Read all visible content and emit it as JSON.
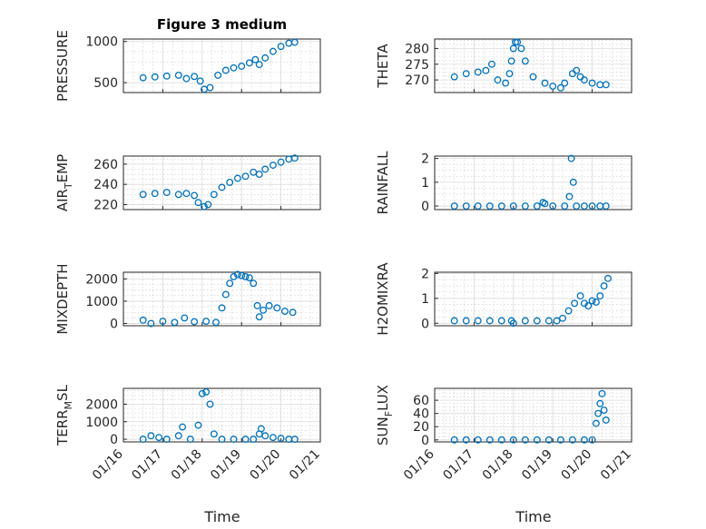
{
  "chart_data": [
    {
      "type": "scatter",
      "title": "Figure 3 medium",
      "ylabel": "PRESSURE",
      "yticks": [
        500,
        1000
      ],
      "ylim": [
        380,
        1030
      ],
      "xlim": [
        "01/16",
        "01/21"
      ],
      "xticks": [
        "01/16",
        "01/17",
        "01/18",
        "01/19",
        "01/20",
        "01/21"
      ],
      "marker_color": "#0072bd",
      "grid": true,
      "x": [
        16.5,
        16.8,
        17.1,
        17.4,
        17.6,
        17.8,
        17.95,
        18.05,
        18.2,
        18.4,
        18.6,
        18.8,
        19.0,
        19.2,
        19.35,
        19.45,
        19.6,
        19.8,
        20.0,
        20.2,
        20.35
      ],
      "y": [
        560,
        570,
        580,
        590,
        550,
        575,
        520,
        420,
        440,
        590,
        650,
        680,
        700,
        740,
        780,
        720,
        800,
        880,
        940,
        980,
        990
      ]
    },
    {
      "type": "scatter",
      "title": "",
      "ylabel": "THETA",
      "yticks": [
        270,
        275,
        280
      ],
      "ylim": [
        266,
        283
      ],
      "xlim": [
        "01/16",
        "01/21"
      ],
      "xticks": [
        "01/16",
        "01/17",
        "01/18",
        "01/19",
        "01/20",
        "01/21"
      ],
      "marker_color": "#0072bd",
      "grid": true,
      "x": [
        16.5,
        16.8,
        17.1,
        17.3,
        17.45,
        17.6,
        17.8,
        17.9,
        17.95,
        18.0,
        18.05,
        18.1,
        18.2,
        18.3,
        18.5,
        18.8,
        19.0,
        19.2,
        19.3,
        19.5,
        19.6,
        19.7,
        19.8,
        20.0,
        20.2,
        20.35
      ],
      "y": [
        271,
        272,
        272.5,
        273,
        275,
        270,
        269,
        272,
        276,
        280,
        282,
        282,
        280,
        276,
        271,
        269,
        268,
        267.5,
        269,
        272,
        273,
        271,
        270,
        269,
        268.5,
        268.5
      ]
    },
    {
      "type": "scatter",
      "title": "",
      "ylabel": "AIR_TEMP",
      "yticks": [
        220,
        240,
        260
      ],
      "ylim": [
        215,
        268
      ],
      "xlim": [
        "01/16",
        "01/21"
      ],
      "xticks": [
        "01/16",
        "01/17",
        "01/18",
        "01/19",
        "01/20",
        "01/21"
      ],
      "marker_color": "#0072bd",
      "grid": true,
      "x": [
        16.5,
        16.8,
        17.1,
        17.4,
        17.6,
        17.8,
        17.9,
        18.05,
        18.15,
        18.3,
        18.5,
        18.7,
        18.9,
        19.1,
        19.3,
        19.45,
        19.6,
        19.8,
        20.0,
        20.2,
        20.35
      ],
      "y": [
        230,
        231,
        232,
        230,
        231,
        229,
        222,
        218,
        220,
        230,
        237,
        242,
        246,
        248,
        252,
        250,
        255,
        259,
        262,
        265,
        266
      ]
    },
    {
      "type": "scatter",
      "title": "",
      "ylabel": "RAINFALL",
      "yticks": [
        0,
        1,
        2
      ],
      "ylim": [
        -0.15,
        2.1
      ],
      "xlim": [
        "01/16",
        "01/21"
      ],
      "xticks": [
        "01/16",
        "01/17",
        "01/18",
        "01/19",
        "01/20",
        "01/21"
      ],
      "marker_color": "#0072bd",
      "grid": true,
      "x": [
        16.5,
        16.8,
        17.1,
        17.4,
        17.7,
        18.0,
        18.3,
        18.6,
        18.75,
        18.8,
        19.0,
        19.3,
        19.42,
        19.47,
        19.52,
        19.6,
        19.8,
        20.0,
        20.2,
        20.35
      ],
      "y": [
        0,
        0,
        0,
        0,
        0,
        0,
        0,
        0,
        0.15,
        0.1,
        0,
        0,
        0.4,
        2.0,
        1.0,
        0,
        0,
        0,
        0,
        0
      ]
    },
    {
      "type": "scatter",
      "title": "",
      "ylabel": "MIXDEPTH",
      "yticks": [
        0,
        1000,
        2000
      ],
      "ylim": [
        -100,
        2300
      ],
      "xlim": [
        "01/16",
        "01/21"
      ],
      "xticks": [
        "01/16",
        "01/17",
        "01/18",
        "01/19",
        "01/20",
        "01/21"
      ],
      "marker_color": "#0072bd",
      "grid": true,
      "x": [
        16.5,
        16.7,
        17.0,
        17.3,
        17.55,
        17.8,
        18.1,
        18.35,
        18.5,
        18.6,
        18.7,
        18.8,
        18.9,
        19.0,
        19.1,
        19.2,
        19.3,
        19.4,
        19.45,
        19.55,
        19.7,
        19.9,
        20.1,
        20.3
      ],
      "y": [
        150,
        0,
        100,
        50,
        250,
        80,
        100,
        50,
        700,
        1300,
        1800,
        2100,
        2200,
        2150,
        2100,
        2050,
        1800,
        800,
        300,
        600,
        800,
        700,
        550,
        500
      ]
    },
    {
      "type": "scatter",
      "title": "",
      "ylabel": "H2OMIXRA",
      "yticks": [
        0,
        1,
        2
      ],
      "ylim": [
        -0.1,
        2.05
      ],
      "xlim": [
        "01/16",
        "01/21"
      ],
      "xticks": [
        "01/16",
        "01/17",
        "01/18",
        "01/19",
        "01/20",
        "01/21"
      ],
      "marker_color": "#0072bd",
      "grid": true,
      "x": [
        16.5,
        16.8,
        17.1,
        17.4,
        17.7,
        17.95,
        18.0,
        18.3,
        18.6,
        18.9,
        19.1,
        19.25,
        19.4,
        19.55,
        19.7,
        19.8,
        19.9,
        20.0,
        20.1,
        20.2,
        20.3,
        20.4
      ],
      "y": [
        0.1,
        0.1,
        0.1,
        0.1,
        0.1,
        0.1,
        0,
        0.1,
        0.1,
        0.1,
        0.1,
        0.2,
        0.5,
        0.8,
        1.1,
        0.8,
        0.7,
        0.9,
        0.85,
        1.1,
        1.5,
        1.8
      ]
    },
    {
      "type": "scatter",
      "title": "",
      "ylabel": "TERR_MSL",
      "yticks": [
        0,
        1000,
        2000
      ],
      "ylim": [
        -150,
        2900
      ],
      "xlim": [
        "01/16",
        "01/21"
      ],
      "xticks": [
        "01/16",
        "01/17",
        "01/18",
        "01/19",
        "01/20",
        "01/21"
      ],
      "marker_color": "#0072bd",
      "grid": true,
      "x": [
        16.5,
        16.7,
        16.9,
        17.1,
        17.4,
        17.5,
        17.7,
        17.9,
        18.0,
        18.1,
        18.2,
        18.3,
        18.5,
        18.8,
        19.1,
        19.3,
        19.45,
        19.5,
        19.6,
        19.8,
        20.0,
        20.2,
        20.35
      ],
      "y": [
        0,
        200,
        100,
        0,
        200,
        700,
        0,
        800,
        2600,
        2700,
        2000,
        300,
        0,
        0,
        0,
        0,
        300,
        600,
        200,
        100,
        50,
        0,
        0
      ]
    },
    {
      "type": "scatter",
      "title": "",
      "ylabel": "SUN_FLUX",
      "yticks": [
        0,
        20,
        40,
        60
      ],
      "ylim": [
        -3,
        78
      ],
      "xlim": [
        "01/16",
        "01/21"
      ],
      "xticks": [
        "01/16",
        "01/17",
        "01/18",
        "01/19",
        "01/20",
        "01/21"
      ],
      "marker_color": "#0072bd",
      "grid": true,
      "x": [
        16.5,
        16.8,
        17.1,
        17.4,
        17.7,
        18.0,
        18.3,
        18.6,
        18.9,
        19.2,
        19.5,
        19.8,
        20.0,
        20.1,
        20.15,
        20.2,
        20.25,
        20.3,
        20.35
      ],
      "y": [
        0,
        0,
        0,
        0,
        0,
        0,
        0,
        0,
        0,
        0,
        0,
        0,
        0,
        25,
        40,
        55,
        70,
        45,
        30
      ]
    }
  ],
  "labels": {
    "xlabel_left": "Time",
    "xlabel_right": "Time",
    "ylabels": [
      {
        "main": "PRESSURE",
        "sub": "",
        "tail": ""
      },
      {
        "main": "THETA",
        "sub": "",
        "tail": ""
      },
      {
        "main": "AIR",
        "sub": "T",
        "tail": "EMP"
      },
      {
        "main": "RAINFALL",
        "sub": "",
        "tail": ""
      },
      {
        "main": "MIXDEPTH",
        "sub": "",
        "tail": ""
      },
      {
        "main": "H2OMIXRA",
        "sub": "",
        "tail": ""
      },
      {
        "main": "TERR",
        "sub": "M",
        "tail": "SL"
      },
      {
        "main": "SUN",
        "sub": "F",
        "tail": "LUX"
      }
    ]
  }
}
